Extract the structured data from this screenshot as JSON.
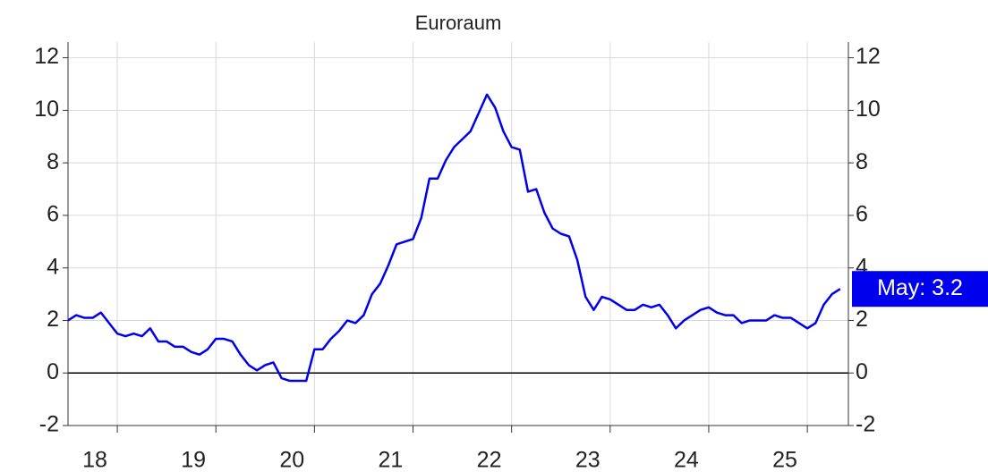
{
  "chart_data": {
    "type": "line",
    "title": "Euroraum",
    "x": [
      "2018-07",
      "2018-08",
      "2018-09",
      "2018-10",
      "2018-11",
      "2018-12",
      "2019-01",
      "2019-02",
      "2019-03",
      "2019-04",
      "2019-05",
      "2019-06",
      "2019-07",
      "2019-08",
      "2019-09",
      "2019-10",
      "2019-11",
      "2019-12",
      "2020-01",
      "2020-02",
      "2020-03",
      "2020-04",
      "2020-05",
      "2020-06",
      "2020-07",
      "2020-08",
      "2020-09",
      "2020-10",
      "2020-11",
      "2020-12",
      "2021-01",
      "2021-02",
      "2021-03",
      "2021-04",
      "2021-05",
      "2021-06",
      "2021-07",
      "2021-08",
      "2021-09",
      "2021-10",
      "2021-11",
      "2021-12",
      "2022-01",
      "2022-02",
      "2022-03",
      "2022-04",
      "2022-05",
      "2022-06",
      "2022-07",
      "2022-08",
      "2022-09",
      "2022-10",
      "2022-11",
      "2022-12",
      "2023-01",
      "2023-02",
      "2023-03",
      "2023-04",
      "2023-05",
      "2023-06",
      "2023-07",
      "2023-08",
      "2023-09",
      "2023-10",
      "2023-11",
      "2023-12",
      "2024-01",
      "2024-02",
      "2024-03",
      "2024-04",
      "2024-05",
      "2024-06",
      "2024-07",
      "2024-08",
      "2024-09",
      "2024-10",
      "2024-11",
      "2024-12",
      "2025-01",
      "2025-02",
      "2025-03",
      "2025-04",
      "2025-05",
      "2025-06",
      "2025-07",
      "2025-08",
      "2025-09",
      "2025-10",
      "2025-11",
      "2025-12",
      "2026-01",
      "2026-02",
      "2026-03",
      "2026-04",
      "2026-05"
    ],
    "series": [
      {
        "name": "Euroraum",
        "color": "#0000ee",
        "values": [
          2.0,
          2.2,
          2.1,
          2.1,
          2.3,
          1.9,
          1.5,
          1.4,
          1.5,
          1.4,
          1.7,
          1.2,
          1.2,
          1.0,
          1.0,
          0.8,
          0.7,
          0.9,
          1.3,
          1.3,
          1.2,
          0.7,
          0.3,
          0.1,
          0.3,
          0.4,
          -0.2,
          -0.3,
          -0.3,
          -0.3,
          0.9,
          0.9,
          1.3,
          1.6,
          2.0,
          1.9,
          2.2,
          3.0,
          3.4,
          4.1,
          4.9,
          5.0,
          5.1,
          5.9,
          7.4,
          7.4,
          8.1,
          8.6,
          8.9,
          9.2,
          9.9,
          10.6,
          10.1,
          9.2,
          8.6,
          8.5,
          6.9,
          7.0,
          6.1,
          5.5,
          5.3,
          5.2,
          4.3,
          2.9,
          2.4,
          2.9,
          2.8,
          2.6,
          2.4,
          2.4,
          2.6,
          2.5,
          2.6,
          2.2,
          1.7,
          2.0,
          2.2,
          2.4,
          2.5,
          2.3,
          2.2,
          2.2,
          1.9,
          2.0,
          2.0,
          2.0,
          2.2,
          2.1,
          2.1,
          1.9,
          1.7,
          1.9,
          2.6,
          3.0,
          3.2
        ]
      }
    ],
    "annotation": "May: 3.2",
    "xlim": [
      "2018-07",
      "2026-06"
    ],
    "xticks": [
      {
        "value": "2018-07",
        "label": "18"
      },
      {
        "value": "2019-07",
        "label": "19"
      },
      {
        "value": "2020-07",
        "label": "20"
      },
      {
        "value": "2021-07",
        "label": "21"
      },
      {
        "value": "2022-07",
        "label": "22"
      },
      {
        "value": "2023-07",
        "label": "23"
      },
      {
        "value": "2024-07",
        "label": "24"
      },
      {
        "value": "2025-07",
        "label": "25"
      }
    ],
    "xgrid": [
      "2019-01",
      "2020-01",
      "2021-01",
      "2022-01",
      "2023-01",
      "2024-01",
      "2025-01",
      "2026-01"
    ],
    "ylim": [
      -2,
      12.6
    ],
    "yticks": [
      -2,
      0,
      2,
      4,
      6,
      8,
      10,
      12
    ],
    "grid": true
  }
}
